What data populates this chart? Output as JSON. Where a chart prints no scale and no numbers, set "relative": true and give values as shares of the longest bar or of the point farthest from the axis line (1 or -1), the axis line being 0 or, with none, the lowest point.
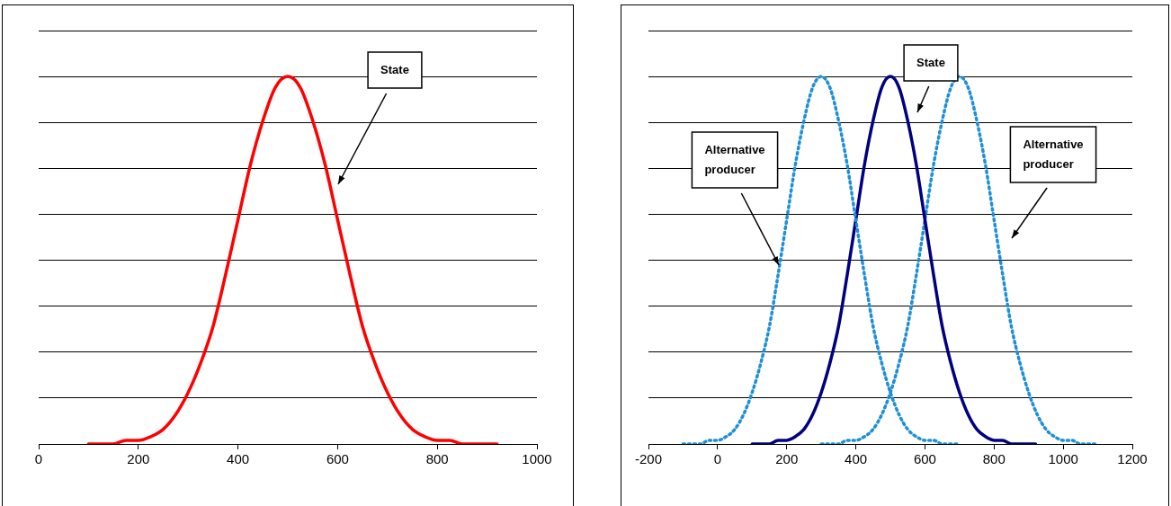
{
  "chart_data": [
    {
      "type": "line",
      "relative": true,
      "grid": "y",
      "tick_labels": "x",
      "marker": "none",
      "xlim": [
        0,
        1000
      ],
      "xticks": [
        0,
        200,
        400,
        600,
        800,
        1000
      ],
      "series": [
        {
          "color": "#ff0000",
          "line_style": "solid",
          "x": [
            100,
            125,
            150,
            175,
            200,
            225,
            250,
            275,
            300,
            325,
            350,
            375,
            400,
            425,
            450,
            475,
            500,
            525,
            550,
            575,
            600,
            625,
            650,
            675,
            700,
            725,
            750,
            775,
            800,
            825,
            850,
            875,
            900,
            920
          ],
          "values": [
            0,
            0,
            0,
            0.01,
            0.01,
            0.02,
            0.04,
            0.08,
            0.14,
            0.22,
            0.32,
            0.46,
            0.61,
            0.76,
            0.88,
            0.97,
            1,
            0.97,
            0.88,
            0.76,
            0.61,
            0.46,
            0.32,
            0.22,
            0.14,
            0.08,
            0.04,
            0.02,
            0.01,
            0.01,
            0,
            0,
            0,
            0
          ]
        }
      ],
      "annotations": [
        "State"
      ]
    },
    {
      "type": "line",
      "relative": true,
      "grid": "y",
      "tick_labels": "x",
      "marker": "none",
      "xlim": [
        -200,
        1200
      ],
      "xticks": [
        -200,
        0,
        200,
        400,
        600,
        800,
        1000,
        1200
      ],
      "series": [
        {
          "color": "#1f8fd6",
          "line_style": "dotted",
          "x": [
            -100,
            -75,
            -50,
            -25,
            0,
            25,
            50,
            75,
            100,
            125,
            150,
            175,
            200,
            225,
            250,
            275,
            300,
            325,
            350,
            375,
            400,
            425,
            450,
            475,
            500,
            525,
            550,
            575,
            600,
            625,
            650,
            675,
            700
          ],
          "values": [
            0,
            0,
            0,
            0.01,
            0.01,
            0.02,
            0.04,
            0.08,
            0.14,
            0.22,
            0.32,
            0.46,
            0.61,
            0.76,
            0.88,
            0.97,
            1,
            0.97,
            0.88,
            0.76,
            0.61,
            0.46,
            0.32,
            0.22,
            0.14,
            0.08,
            0.04,
            0.02,
            0.01,
            0.01,
            0,
            0,
            0
          ]
        },
        {
          "color": "#000080",
          "line_style": "solid",
          "x": [
            100,
            125,
            150,
            175,
            200,
            225,
            250,
            275,
            300,
            325,
            350,
            375,
            400,
            425,
            450,
            475,
            500,
            525,
            550,
            575,
            600,
            625,
            650,
            675,
            700,
            725,
            750,
            775,
            800,
            825,
            850,
            875,
            900,
            920
          ],
          "values": [
            0,
            0,
            0,
            0.01,
            0.01,
            0.02,
            0.04,
            0.08,
            0.14,
            0.22,
            0.32,
            0.46,
            0.61,
            0.76,
            0.88,
            0.97,
            1,
            0.97,
            0.88,
            0.76,
            0.61,
            0.46,
            0.32,
            0.22,
            0.14,
            0.08,
            0.04,
            0.02,
            0.01,
            0.01,
            0,
            0,
            0,
            0
          ]
        },
        {
          "color": "#1f8fd6",
          "line_style": "dotted",
          "x": [
            300,
            325,
            350,
            375,
            400,
            425,
            450,
            475,
            500,
            525,
            550,
            575,
            600,
            625,
            650,
            675,
            700,
            725,
            750,
            775,
            800,
            825,
            850,
            875,
            900,
            925,
            950,
            975,
            1000,
            1025,
            1050,
            1075,
            1100
          ],
          "values": [
            0,
            0,
            0,
            0.01,
            0.01,
            0.02,
            0.04,
            0.08,
            0.14,
            0.22,
            0.32,
            0.46,
            0.61,
            0.76,
            0.88,
            0.97,
            1,
            0.97,
            0.88,
            0.76,
            0.61,
            0.46,
            0.32,
            0.22,
            0.14,
            0.08,
            0.04,
            0.02,
            0.01,
            0.01,
            0,
            0,
            0
          ]
        }
      ],
      "annotations": [
        "State",
        "Alternative producer",
        "Alternative producer"
      ]
    }
  ]
}
